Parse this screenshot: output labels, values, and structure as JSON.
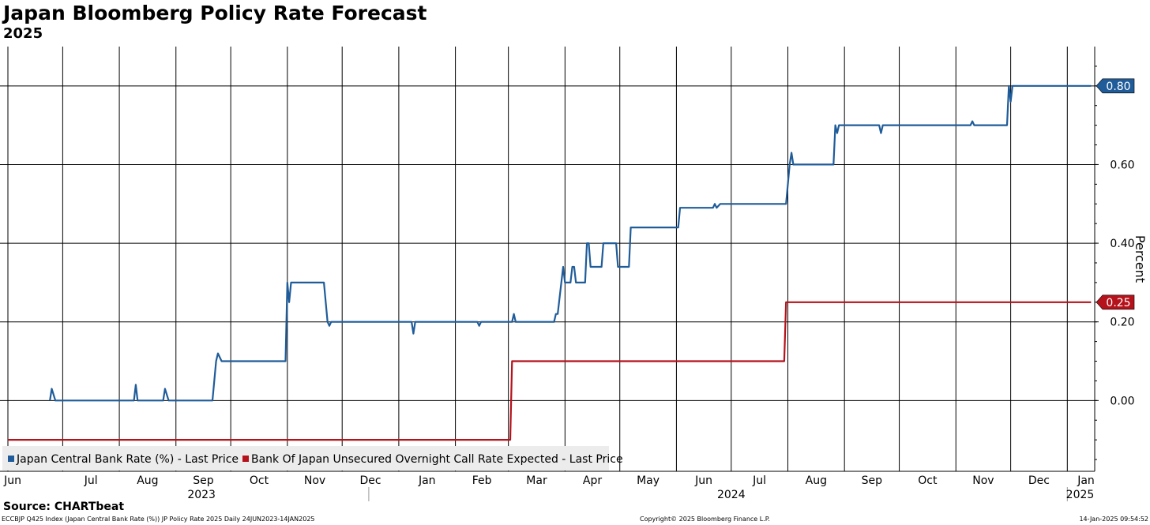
{
  "chart_data": {
    "type": "line",
    "title": "Japan Bloomberg Policy Rate Forecast",
    "subtitle": "2025",
    "ylabel": "Percent",
    "ylim": [
      -0.18,
      0.9
    ],
    "yticks": [
      0.0,
      0.2,
      0.4,
      0.6,
      0.8
    ],
    "ytick_labels": [
      "0.00",
      "0.20",
      "0.40",
      "0.60",
      "0.80"
    ],
    "xlim": [
      "2023-06-01",
      "2025-01-16"
    ],
    "month_ticks": [
      {
        "date": "2023-06-01",
        "label": "Jun"
      },
      {
        "date": "2023-07-01",
        "label": "Jul"
      },
      {
        "date": "2023-08-01",
        "label": "Aug"
      },
      {
        "date": "2023-09-01",
        "label": "Sep"
      },
      {
        "date": "2023-10-01",
        "label": "Oct"
      },
      {
        "date": "2023-11-01",
        "label": "Nov"
      },
      {
        "date": "2023-12-01",
        "label": "Dec"
      },
      {
        "date": "2024-01-01",
        "label": "Jan"
      },
      {
        "date": "2024-02-01",
        "label": "Feb"
      },
      {
        "date": "2024-03-01",
        "label": "Mar"
      },
      {
        "date": "2024-04-01",
        "label": "Apr"
      },
      {
        "date": "2024-05-01",
        "label": "May"
      },
      {
        "date": "2024-06-01",
        "label": "Jun"
      },
      {
        "date": "2024-07-01",
        "label": "Jul"
      },
      {
        "date": "2024-08-01",
        "label": "Aug"
      },
      {
        "date": "2024-09-01",
        "label": "Sep"
      },
      {
        "date": "2024-10-01",
        "label": "Oct"
      },
      {
        "date": "2024-11-01",
        "label": "Nov"
      },
      {
        "date": "2024-12-01",
        "label": "Dec"
      },
      {
        "date": "2025-01-01",
        "label": "Jan"
      }
    ],
    "year_labels": [
      {
        "label": "2023",
        "date": "2023-09-15"
      },
      {
        "label": "2024",
        "date": "2024-07-01"
      },
      {
        "label": "2025",
        "date": "2025-01-08"
      }
    ],
    "grid": true,
    "legend": "bottom-left",
    "series": [
      {
        "name": "Japan Central Bank Rate (%) - Last Price",
        "color": "#1f5c99",
        "last_label": "0.80",
        "points": [
          [
            "2023-06-24",
            0.0
          ],
          [
            "2023-06-25",
            0.03
          ],
          [
            "2023-06-27",
            0.0
          ],
          [
            "2023-07-10",
            0.0
          ],
          [
            "2023-08-09",
            0.0
          ],
          [
            "2023-08-10",
            0.04
          ],
          [
            "2023-08-11",
            0.0
          ],
          [
            "2023-08-25",
            0.0
          ],
          [
            "2023-08-26",
            0.03
          ],
          [
            "2023-08-28",
            0.0
          ],
          [
            "2023-09-21",
            0.0
          ],
          [
            "2023-09-23",
            0.1
          ],
          [
            "2023-09-24",
            0.12
          ],
          [
            "2023-09-26",
            0.1
          ],
          [
            "2023-10-31",
            0.1
          ],
          [
            "2023-11-01",
            0.3
          ],
          [
            "2023-11-02",
            0.25
          ],
          [
            "2023-11-03",
            0.3
          ],
          [
            "2023-11-21",
            0.3
          ],
          [
            "2023-11-23",
            0.2
          ],
          [
            "2023-11-24",
            0.19
          ],
          [
            "2023-11-25",
            0.2
          ],
          [
            "2024-01-08",
            0.2
          ],
          [
            "2024-01-09",
            0.17
          ],
          [
            "2024-01-10",
            0.2
          ],
          [
            "2024-02-13",
            0.2
          ],
          [
            "2024-02-14",
            0.19
          ],
          [
            "2024-02-15",
            0.2
          ],
          [
            "2024-03-03",
            0.2
          ],
          [
            "2024-03-04",
            0.22
          ],
          [
            "2024-03-05",
            0.2
          ],
          [
            "2024-03-26",
            0.2
          ],
          [
            "2024-03-27",
            0.22
          ],
          [
            "2024-03-28",
            0.22
          ],
          [
            "2024-03-30",
            0.3
          ],
          [
            "2024-03-31",
            0.34
          ],
          [
            "2024-04-01",
            0.3
          ],
          [
            "2024-04-04",
            0.3
          ],
          [
            "2024-04-05",
            0.34
          ],
          [
            "2024-04-06",
            0.34
          ],
          [
            "2024-04-07",
            0.3
          ],
          [
            "2024-04-12",
            0.3
          ],
          [
            "2024-04-13",
            0.4
          ],
          [
            "2024-04-14",
            0.4
          ],
          [
            "2024-04-15",
            0.34
          ],
          [
            "2024-04-21",
            0.34
          ],
          [
            "2024-04-22",
            0.4
          ],
          [
            "2024-04-29",
            0.4
          ],
          [
            "2024-04-30",
            0.34
          ],
          [
            "2024-05-06",
            0.34
          ],
          [
            "2024-05-07",
            0.44
          ],
          [
            "2024-06-02",
            0.44
          ],
          [
            "2024-06-03",
            0.49
          ],
          [
            "2024-06-21",
            0.49
          ],
          [
            "2024-06-22",
            0.5
          ],
          [
            "2024-06-23",
            0.49
          ],
          [
            "2024-06-25",
            0.5
          ],
          [
            "2024-07-31",
            0.5
          ],
          [
            "2024-08-02",
            0.6
          ],
          [
            "2024-08-03",
            0.63
          ],
          [
            "2024-08-04",
            0.6
          ],
          [
            "2024-08-26",
            0.6
          ],
          [
            "2024-08-27",
            0.7
          ],
          [
            "2024-08-28",
            0.68
          ],
          [
            "2024-08-29",
            0.7
          ],
          [
            "2024-09-20",
            0.7
          ],
          [
            "2024-09-21",
            0.68
          ],
          [
            "2024-09-22",
            0.7
          ],
          [
            "2024-11-09",
            0.7
          ],
          [
            "2024-11-10",
            0.71
          ],
          [
            "2024-11-11",
            0.7
          ],
          [
            "2024-11-29",
            0.7
          ],
          [
            "2024-11-30",
            0.8
          ],
          [
            "2024-12-01",
            0.76
          ],
          [
            "2024-12-02",
            0.8
          ],
          [
            "2025-01-14",
            0.8
          ]
        ]
      },
      {
        "name": "Bank Of Japan Unsecured Overnight Call Rate Expected - Last Price",
        "color": "#b5121b",
        "last_label": "0.25",
        "points": [
          [
            "2023-06-01",
            -0.1
          ],
          [
            "2024-03-02",
            -0.1
          ],
          [
            "2024-03-03",
            0.1
          ],
          [
            "2024-07-30",
            0.1
          ],
          [
            "2024-07-31",
            0.25
          ],
          [
            "2025-01-14",
            0.25
          ]
        ]
      }
    ]
  },
  "source_label": "Source: CHARTbeat",
  "footer": {
    "left": "ECCBJP Q425 Index (Japan Central Bank Rate (%)) JP Policy Rate 2025  Daily 24JUN2023-14JAN2025",
    "center": "Copyright© 2025 Bloomberg Finance L.P.",
    "right": "14-Jan-2025 09:54:52"
  }
}
